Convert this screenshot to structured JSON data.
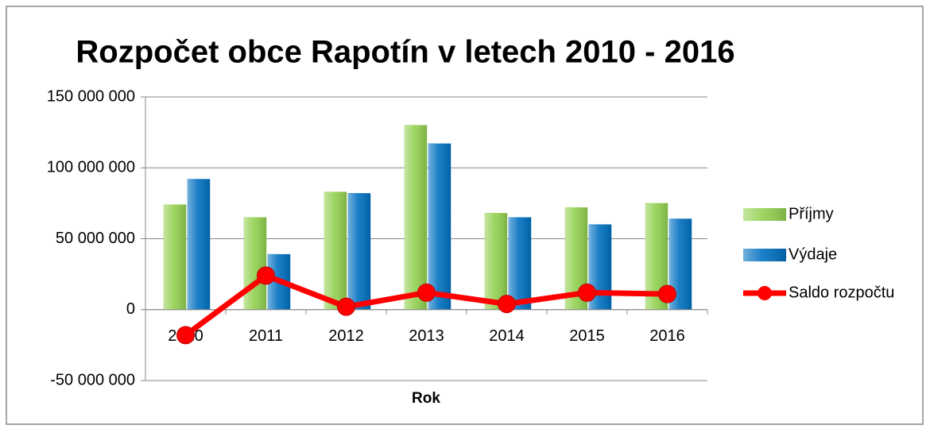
{
  "chart_data": {
    "type": "bar-line",
    "title": "Rozpočet obce Rapotín v letech 2010 - 2016",
    "x_label": "Rok",
    "categories": [
      "2010",
      "2011",
      "2012",
      "2013",
      "2014",
      "2015",
      "2016"
    ],
    "series": [
      {
        "name": "Příjmy",
        "type": "bar",
        "color": "#92d050",
        "values": [
          74000000,
          65000000,
          83000000,
          130000000,
          68000000,
          72000000,
          75000000
        ]
      },
      {
        "name": "Výdaje",
        "type": "bar",
        "color": "#0070c0",
        "values": [
          92000000,
          39000000,
          82000000,
          117000000,
          65000000,
          60000000,
          64000000
        ]
      },
      {
        "name": "Saldo rozpočtu",
        "type": "line",
        "color": "#ff0000",
        "values": [
          -18000000,
          24000000,
          2000000,
          12000000,
          4000000,
          12000000,
          11000000
        ]
      }
    ],
    "ylim": [
      -50000000,
      150000000
    ],
    "yticks": [
      {
        "value": -50000000,
        "label": "-50 000 000"
      },
      0,
      {
        "value": 50000000,
        "label": "50 000 000"
      },
      {
        "value": 100000000,
        "label": "100 000 000"
      },
      {
        "value": 150000000,
        "label": "150 000 000"
      }
    ],
    "grid": true,
    "legend": "right"
  }
}
